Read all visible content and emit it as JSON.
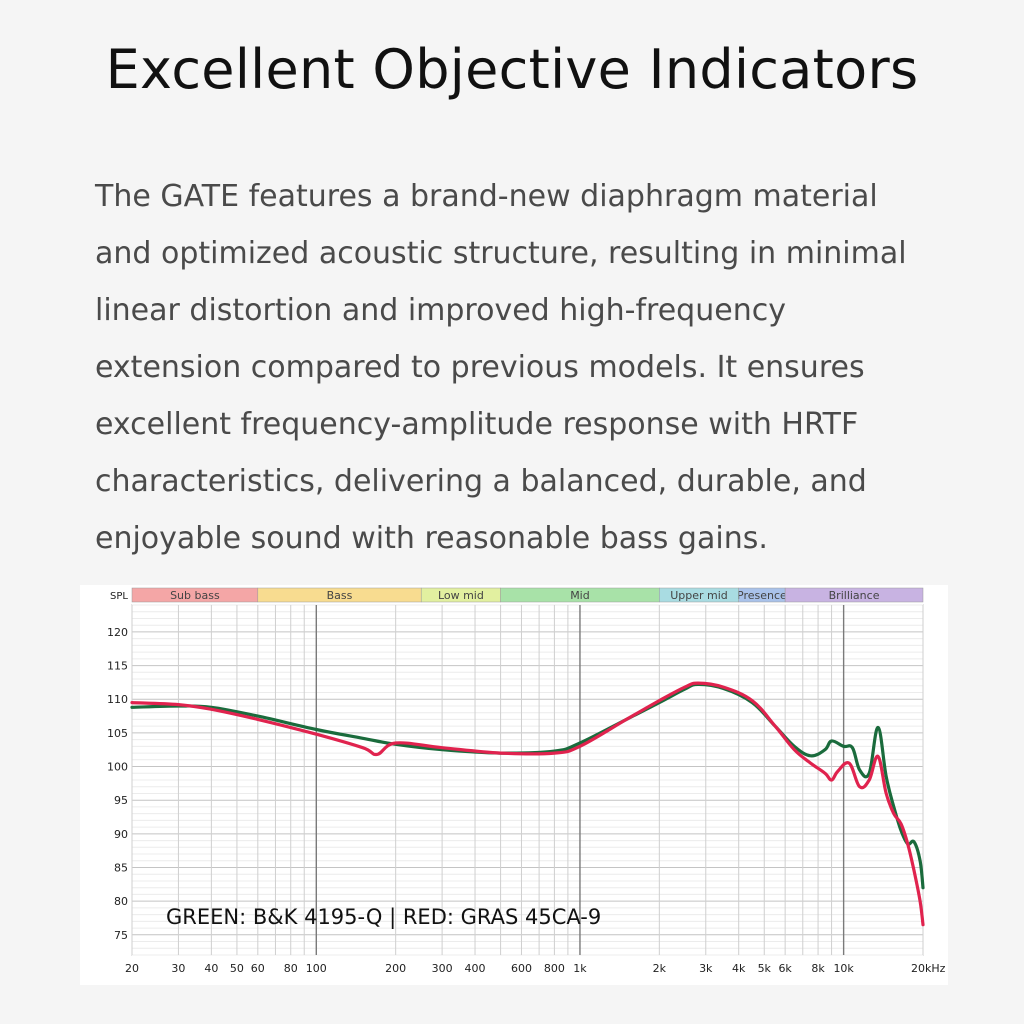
{
  "header": {
    "title": "Excellent Objective Indicators"
  },
  "description": {
    "lines": [
      "The GATE features a brand-new diaphragm material",
      "and optimized acoustic structure, resulting in minimal",
      "linear distortion and improved high-frequency",
      "extension compared to previous models. It ensures",
      "excellent frequency-amplitude response with HRTF",
      "characteristics, delivering a balanced, durable, and",
      "enjoyable sound with reasonable bass gains."
    ]
  },
  "chart_data": {
    "type": "line",
    "ylabel": "SPL",
    "x_scale": "log",
    "xlim": [
      20,
      20000
    ],
    "ylim": [
      72,
      124
    ],
    "y_ticks": [
      75,
      80,
      85,
      90,
      95,
      100,
      105,
      110,
      115,
      120
    ],
    "x_ticks": [
      {
        "value": 20,
        "label": "20"
      },
      {
        "value": 30,
        "label": "30"
      },
      {
        "value": 40,
        "label": "40"
      },
      {
        "value": 50,
        "label": "50"
      },
      {
        "value": 60,
        "label": "60"
      },
      {
        "value": 80,
        "label": "80"
      },
      {
        "value": 100,
        "label": "100"
      },
      {
        "value": 200,
        "label": "200"
      },
      {
        "value": 300,
        "label": "300"
      },
      {
        "value": 400,
        "label": "400"
      },
      {
        "value": 600,
        "label": "600"
      },
      {
        "value": 800,
        "label": "800"
      },
      {
        "value": 1000,
        "label": "1k"
      },
      {
        "value": 2000,
        "label": "2k"
      },
      {
        "value": 3000,
        "label": "3k"
      },
      {
        "value": 4000,
        "label": "4k"
      },
      {
        "value": 5000,
        "label": "5k"
      },
      {
        "value": 6000,
        "label": "6k"
      },
      {
        "value": 8000,
        "label": "8k"
      },
      {
        "value": 10000,
        "label": "10k"
      },
      {
        "value": 20000,
        "label": "20kHz"
      }
    ],
    "bands": [
      {
        "label": "Sub bass",
        "from": 20,
        "to": 60,
        "color": "#f4a6a6"
      },
      {
        "label": "Bass",
        "from": 60,
        "to": 250,
        "color": "#f8dc90"
      },
      {
        "label": "Low mid",
        "from": 250,
        "to": 500,
        "color": "#e2f0a0"
      },
      {
        "label": "Mid",
        "from": 500,
        "to": 2000,
        "color": "#a8e2a8"
      },
      {
        "label": "Upper mid",
        "from": 2000,
        "to": 4000,
        "color": "#a9dce2"
      },
      {
        "label": "Presence",
        "from": 4000,
        "to": 6000,
        "color": "#a9c2ea"
      },
      {
        "label": "Brilliance",
        "from": 6000,
        "to": 20000,
        "color": "#c8b3e2"
      }
    ],
    "annotation": "GREEN: B&K 4195-Q | RED: GRAS 45CA-9",
    "grid": true,
    "series": [
      {
        "color": "#1a6b3c",
        "x": [
          20,
          30,
          40,
          60,
          100,
          150,
          200,
          300,
          500,
          800,
          1000,
          1500,
          2000,
          2500,
          2800,
          3500,
          4500,
          5500,
          6500,
          7500,
          8500,
          9000,
          10000,
          10800,
          11500,
          12500,
          13500,
          14500,
          15500,
          16500,
          17500,
          18500,
          19500,
          20000
        ],
        "y": [
          108.8,
          109.0,
          108.8,
          107.5,
          105.5,
          104.2,
          103.3,
          102.5,
          102.0,
          102.3,
          103.5,
          107.0,
          109.5,
          111.5,
          112.2,
          111.6,
          109.5,
          106.0,
          103.0,
          101.6,
          102.5,
          103.8,
          103.0,
          102.8,
          99.5,
          99.0,
          105.8,
          98.5,
          94.0,
          90.5,
          88.5,
          88.8,
          86.0,
          82.0
        ]
      },
      {
        "color": "#e0234e",
        "x": [
          20,
          30,
          40,
          60,
          100,
          150,
          170,
          200,
          300,
          500,
          800,
          1000,
          1500,
          2000,
          2500,
          2800,
          3500,
          4500,
          5500,
          6500,
          7500,
          8500,
          9000,
          9500,
          10500,
          11500,
          12500,
          13500,
          14500,
          15500,
          16500,
          17500,
          18500,
          19500,
          20000
        ],
        "y": [
          109.5,
          109.2,
          108.5,
          107.0,
          104.8,
          102.8,
          101.8,
          103.5,
          102.8,
          102.0,
          102.0,
          103.0,
          107.0,
          109.8,
          111.8,
          112.4,
          111.8,
          109.8,
          106.0,
          102.5,
          100.5,
          99.0,
          98.0,
          99.3,
          100.5,
          97.0,
          98.0,
          101.5,
          96.0,
          93.0,
          91.5,
          88.5,
          84.5,
          80.0,
          76.5
        ]
      }
    ]
  }
}
